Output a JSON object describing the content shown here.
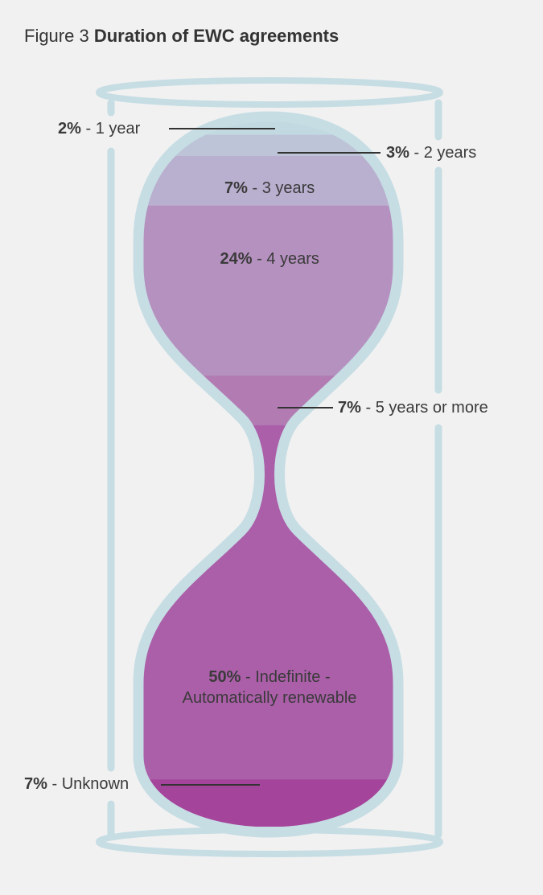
{
  "chart_data": {
    "type": "hourglass",
    "figure_label": "Figure 3",
    "title": "Duration of EWC agreements",
    "separator": "-",
    "categories": [
      "1 year",
      "2 years",
      "3 years",
      "4 years",
      "5 years or more",
      "Indefinite - Automatically renewable",
      "Unknown"
    ],
    "values": [
      2,
      3,
      7,
      24,
      7,
      50,
      7
    ],
    "value_labels": [
      "2%",
      "3%",
      "7%",
      "24%",
      "7%",
      "50%",
      "7%"
    ],
    "colors": [
      "#c3d9e1",
      "#bdc4d7",
      "#b9afcf",
      "#b591bf",
      "#b27cb3",
      "#ab5fa9",
      "#a5449b"
    ]
  }
}
